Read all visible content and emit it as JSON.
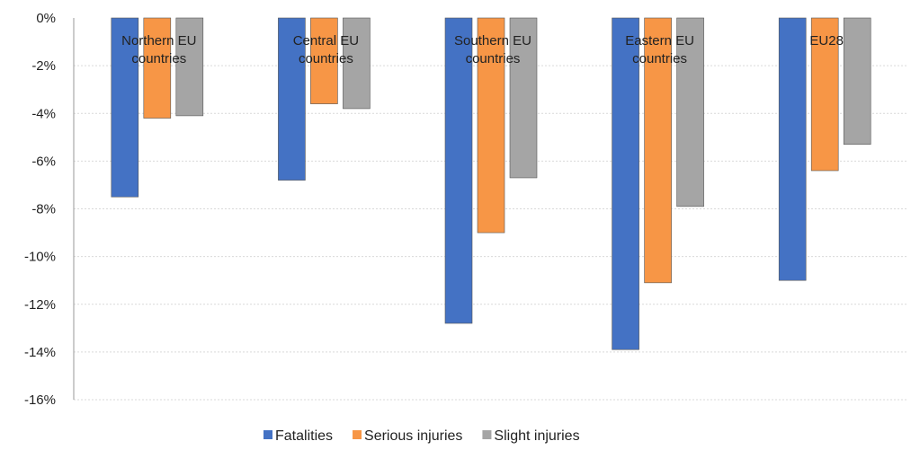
{
  "chart_data": {
    "type": "bar",
    "categories": [
      [
        "Northern EU",
        "countries"
      ],
      [
        "Central EU",
        "countries"
      ],
      [
        "Southern EU",
        "countries"
      ],
      [
        "Eastern EU",
        "countries"
      ],
      [
        "EU28"
      ]
    ],
    "series": [
      {
        "name": "Fatalities",
        "color": "#4472c4",
        "values": [
          -7.5,
          -6.8,
          -12.8,
          -13.9,
          -11.0
        ]
      },
      {
        "name": "Serious injuries",
        "color": "#f79646",
        "values": [
          -4.2,
          -3.6,
          -9.0,
          -11.1,
          -6.4
        ]
      },
      {
        "name": "Slight injuries",
        "color": "#a5a5a5",
        "values": [
          -4.1,
          -3.8,
          -6.7,
          -7.9,
          -5.3
        ]
      }
    ],
    "yticks": [
      "0%",
      "-2%",
      "-4%",
      "-6%",
      "-8%",
      "-10%",
      "-12%",
      "-14%",
      "-16%"
    ],
    "ylim": [
      -16,
      0
    ],
    "grid": true,
    "legend_position": "bottom"
  }
}
